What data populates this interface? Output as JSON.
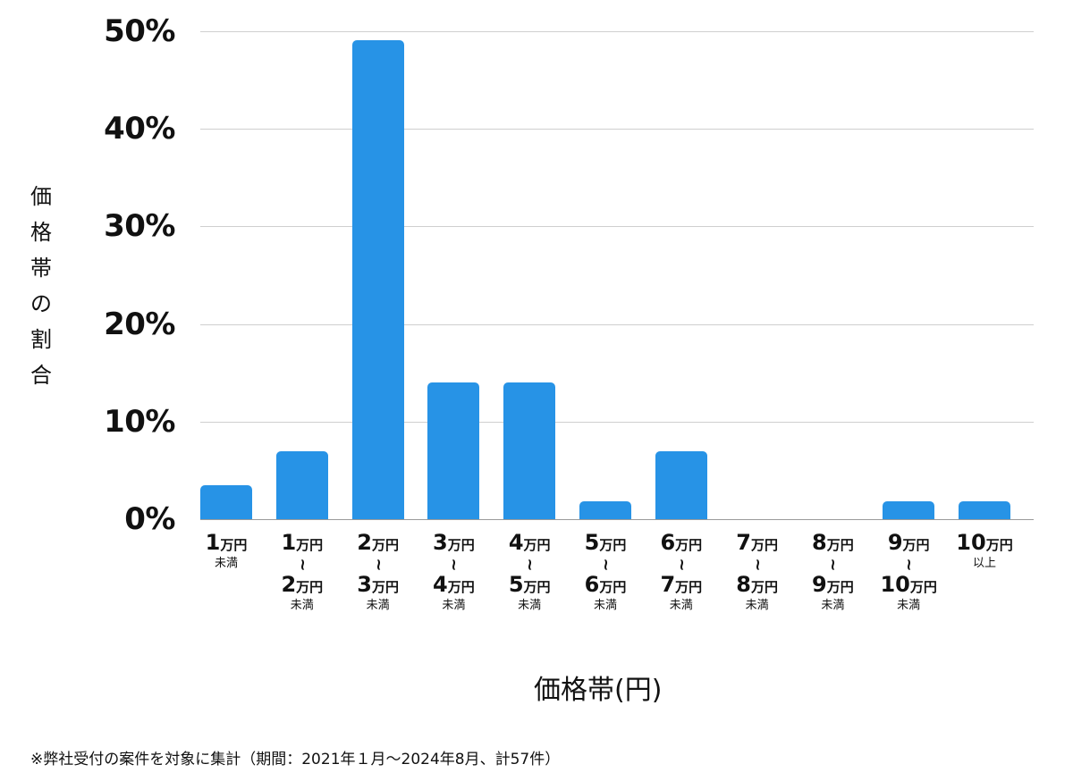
{
  "chart_data": {
    "type": "bar",
    "title": "",
    "xlabel": "価格帯(円)",
    "ylabel": "価格帯の割合",
    "ylim": [
      0,
      50
    ],
    "yticks": [
      "0%",
      "10%",
      "20%",
      "30%",
      "40%",
      "50%"
    ],
    "grid": true,
    "legend": "none",
    "categories": [
      "1万円未満",
      "1万円〜2万円未満",
      "2万円〜3万円未満",
      "3万円〜4万円未満",
      "4万円〜5万円未満",
      "5万円〜6万円未満",
      "6万円〜7万円未満",
      "7万円〜8万円未満",
      "8万円〜9万円未満",
      "9万円〜10万円未満",
      "10万円以上"
    ],
    "values": [
      3.5,
      7.0,
      49.1,
      14.0,
      14.0,
      1.8,
      7.0,
      0,
      0,
      1.8,
      1.8
    ],
    "bar_color": "#2793e6",
    "note": "※弊社受付の案件を対象に集計（期間：2021年１月〜2024年8月、計57件）"
  },
  "labels": {
    "ylabel_chars": [
      "価",
      "格",
      "帯",
      "の",
      "割",
      "合"
    ],
    "unit": "万円",
    "under": "未満",
    "over": "以上",
    "tilde": "~",
    "cats": [
      {
        "a": "1",
        "b": null,
        "suffix": "未満"
      },
      {
        "a": "1",
        "b": "2",
        "suffix": "未満"
      },
      {
        "a": "2",
        "b": "3",
        "suffix": "未満"
      },
      {
        "a": "3",
        "b": "4",
        "suffix": "未満"
      },
      {
        "a": "4",
        "b": "5",
        "suffix": "未満"
      },
      {
        "a": "5",
        "b": "6",
        "suffix": "未満"
      },
      {
        "a": "6",
        "b": "7",
        "suffix": "未満"
      },
      {
        "a": "7",
        "b": "8",
        "suffix": "未満"
      },
      {
        "a": "8",
        "b": "9",
        "suffix": "未満"
      },
      {
        "a": "9",
        "b": "10",
        "suffix": "未満"
      },
      {
        "a": "10",
        "b": null,
        "suffix": "以上"
      }
    ]
  }
}
